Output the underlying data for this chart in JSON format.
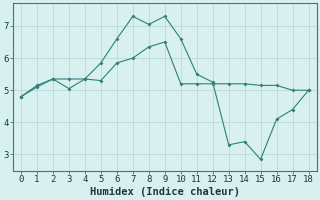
{
  "x": [
    0,
    1,
    2,
    3,
    4,
    5,
    6,
    7,
    8,
    9,
    10,
    11,
    12,
    13,
    14,
    15,
    16,
    17,
    18
  ],
  "line1_y": [
    4.8,
    5.1,
    5.35,
    5.05,
    5.35,
    5.85,
    6.6,
    7.3,
    7.05,
    7.3,
    6.6,
    5.5,
    5.25,
    3.3,
    3.4,
    2.85,
    4.1,
    4.4,
    5.0
  ],
  "line2_y": [
    4.8,
    5.15,
    5.35,
    5.35,
    5.35,
    5.3,
    5.85,
    6.0,
    6.35,
    6.5,
    5.2,
    5.2,
    5.2,
    5.2,
    5.2,
    5.15,
    5.15,
    5.0,
    5.0
  ],
  "line_color": "#2e7f7f",
  "bg_color": "#d8f0ee",
  "grid_color": "#b8dbd9",
  "xlabel": "Humidex (Indice chaleur)",
  "xlabel_fontsize": 7.5,
  "tick_fontsize": 6.5,
  "ylim": [
    2.5,
    7.7
  ],
  "yticks": [
    3,
    4,
    5,
    6,
    7
  ],
  "xlim": [
    -0.5,
    18.5
  ],
  "xticks": [
    0,
    1,
    2,
    3,
    4,
    5,
    6,
    7,
    8,
    9,
    10,
    11,
    12,
    13,
    14,
    15,
    16,
    17,
    18
  ]
}
